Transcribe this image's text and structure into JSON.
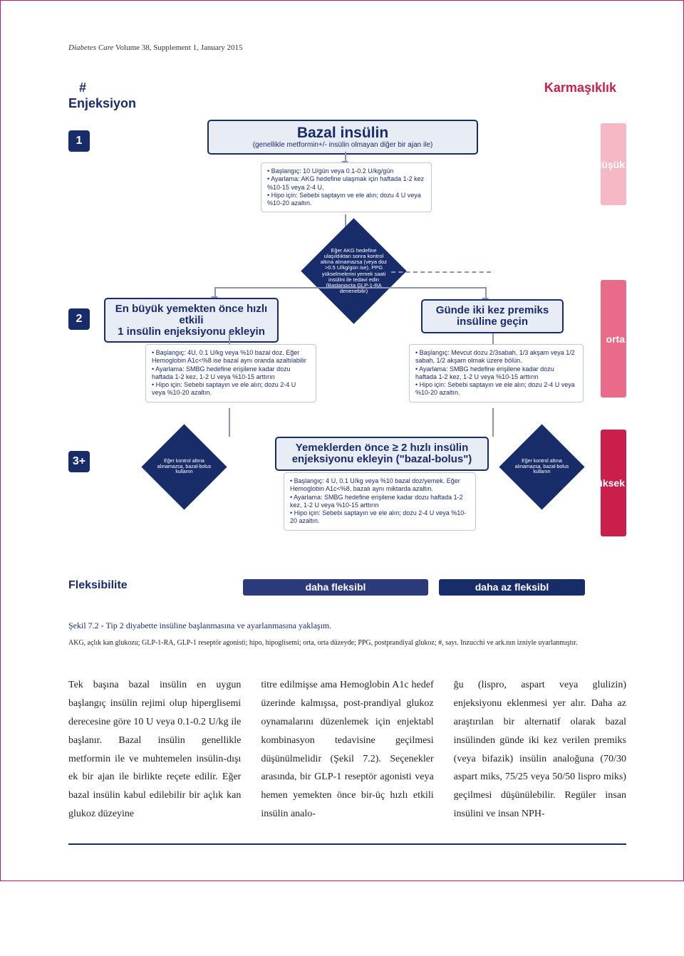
{
  "header": {
    "journal": "Diabetes Care",
    "issue": " Volume 38, Supplement 1, January 2015"
  },
  "diagram": {
    "hash": "#",
    "enj": "Enjeksiyon",
    "complexity_label": "Karmaşıklık",
    "rows": {
      "r1": "1",
      "r2": "2",
      "r3": "3+"
    },
    "cbar": {
      "low": "düşük",
      "mid": "orta",
      "high": "yüksek"
    },
    "cbar_colors": {
      "low": "#f7b8c6",
      "mid": "#e86b8a",
      "high": "#c91f4a"
    },
    "basal": {
      "title": "Bazal insülin",
      "sub": "(genellikle metformin+/- insülin olmayan diğer bir ajan ile)"
    },
    "ib1": {
      "l1": "Başlangıç: 10 U/gün veya 0.1-0.2 U/kg/gün",
      "l2": "Ayarlama: AKG hedefine ulaşmak için haftada 1-2 kez %10-15 veya 2-4 U,",
      "l3": "Hipo için: Sebebi saptayın ve ele alın; dozu 4 U veya %10-20 azaltın."
    },
    "d_top": "Eğer AKG hedefine ulaşıldıktan sonra kontrol altına alınamazsa (veya doz >0.5 U/kg/gün ise), PPG yükselmelerini yemek saati insülini ile tedavi edin (Başlangıçta GLP-1-RA denenebilir)",
    "meal": {
      "title_a": "En büyük yemekten önce hızlı etkili",
      "title_b": "1 insülin enjeksiyonu ekleyin"
    },
    "premix": {
      "title_a": "Günde iki kez premiks",
      "title_b": "insüline geçin"
    },
    "bolus": {
      "title_a": "Yemeklerden önce ≥ 2 hızlı insülin",
      "title_b": "enjeksiyonu ekleyin (\"bazal-bolus\")"
    },
    "ib2": {
      "l1": "Başlangıç: 4U, 0.1 U/kg veya %10 bazal doz. Eğer Hemoglobin A1c<%8 ise bazal aynı oranda azaltılabilir",
      "l2": "Ayarlama: SMBG hedefine erişilene kadar dozu haftada 1-2 kez, 1-2 U veya %10-15 arttırın",
      "l3": "Hipo için: Sebebi saptayın ve ele alın; dozu 2-4 U veya %10-20 azaltın."
    },
    "ib3": {
      "l1": "Başlangıç: Mevcut dozu 2/3sabah, 1/3 akşam veya 1/2 sabah, 1/2 akşam olmak üzere bölün.",
      "l2": "Ayarlama: SMBG hedefine erişilene kadar dozu haftada 1-2 kez, 1-2 U veya %10-15 arttırın",
      "l3": "Hipo için: Sebebi saptayın ve ele alın; dozu 2-4 U veya %10-20 azaltın."
    },
    "ib4": {
      "l1": "Başlangıç: 4 U, 0.1 U/kg veya %10 bazal doz/yemek. Eğer Hemoglobin A1c<%8, bazalı aynı miktarda azaltın.",
      "l2": "Ayarlama: SMBG hedefine erişilene kadar dozu haftada 1-2 kez, 1-2 U veya %10-15 arttırın",
      "l3": "Hipo için: Sebebi saptayın ve ele alın; dozu 2-4 U veya %10-20 azaltın."
    },
    "d_left": "Eğer kontrol altına alınamazsa, bazal-bolus kullanın",
    "d_right": "Eğer kontrol altına alınamazsa, bazal-bolus kullanın",
    "flex": {
      "label": "Fleksibilite",
      "more": "daha fleksibl",
      "less": "daha az fleksibl"
    }
  },
  "caption": "Şekil 7.2 - Tip 2 diyabette insüline başlanmasına ve ayarlanmasına yaklaşım.",
  "abbrev": "AKG, açlık kan glukozu; GLP-1-RA, GLP-1 reseptör agonisti; hipo, hipoglisemi; orta, orta düzeyde; PPG, postprandiyal glukoz; #, sayı. Inzucchi ve ark.nın izniyle uyarlanmıştır.",
  "body": {
    "c1": "Tek başına bazal insülin en uygun başlangıç insülin rejimi olup hiperglisemi derecesine göre 10 U veya 0.1-0.2 U/kg ile başlanır. Bazal insülin genellikle metformin ile ve muhtemelen insülin-dışı ek bir ajan ile birlikte reçete edilir. Eğer bazal insülin kabul edilebilir bir açlık kan glukoz düzeyine",
    "c2": "titre edilmişse ama Hemoglobin A1c hedef üzerinde kalmışsa, post-prandiyal glukoz oynamalarını düzenlemek için enjektabl kombinasyon tedavisine geçilmesi düşünülmelidir (Şekil 7.2). Seçenekler arasında, bir GLP-1 reseptör agonisti veya hemen yemekten önce bir-üç hızlı etkili insülin analo-",
    "c3": "ğu (lispro, aspart veya glulizin) enjeksiyonu eklenmesi yer alır. Daha az araştırılan bir alternatif olarak bazal insülinden günde iki kez verilen premiks (veya bifazik) insülin analoğuna (70/30 aspart miks, 75/25 veya 50/50 lispro miks) geçilmesi düşünülebilir. Regüler insan insülini ve insan NPH-"
  }
}
